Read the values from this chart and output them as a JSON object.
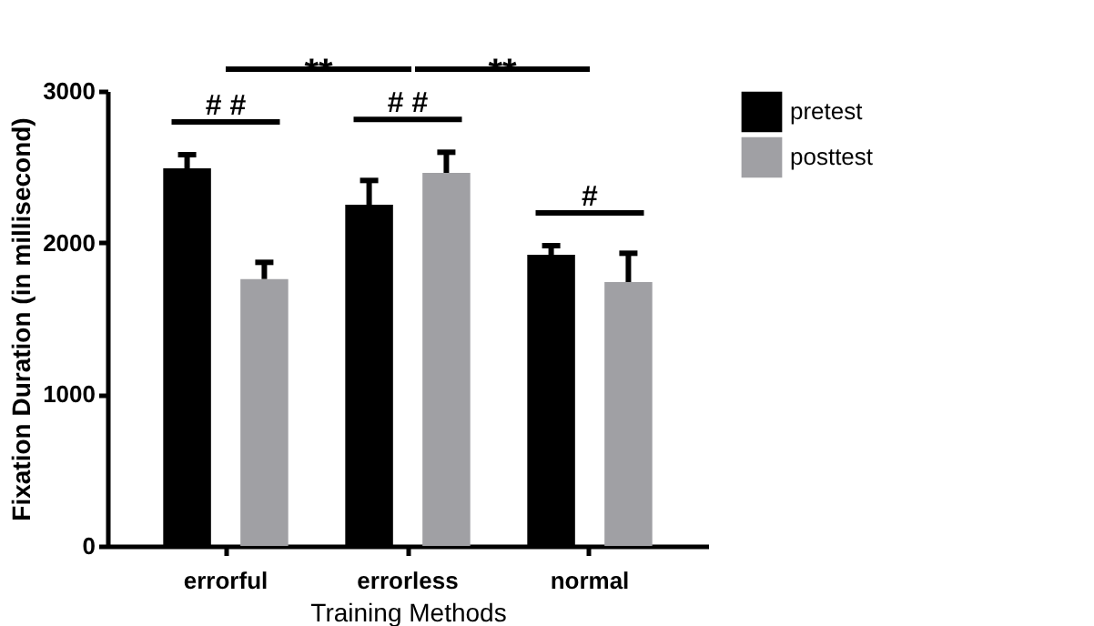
{
  "chart_data": {
    "type": "bar",
    "xlabel": "Training Methods",
    "ylabel": "Fixation Duration (in millisecond)",
    "categories": [
      "errorful",
      "errorless",
      "normal"
    ],
    "series": [
      {
        "name": "pretest",
        "color": "#000000",
        "values": [
          2490,
          2250,
          1920
        ],
        "errors": [
          90,
          160,
          60
        ]
      },
      {
        "name": "posttest",
        "color": "#a0a0a4",
        "values": [
          1760,
          2460,
          1740
        ],
        "errors": [
          110,
          136,
          190
        ]
      }
    ],
    "ylim": [
      0,
      3000
    ],
    "yticks": [
      0,
      1000,
      2000,
      3000
    ],
    "grid": false,
    "legend": "right",
    "annotations": [
      "# #",
      "# #",
      "#",
      "**",
      "**"
    ]
  }
}
